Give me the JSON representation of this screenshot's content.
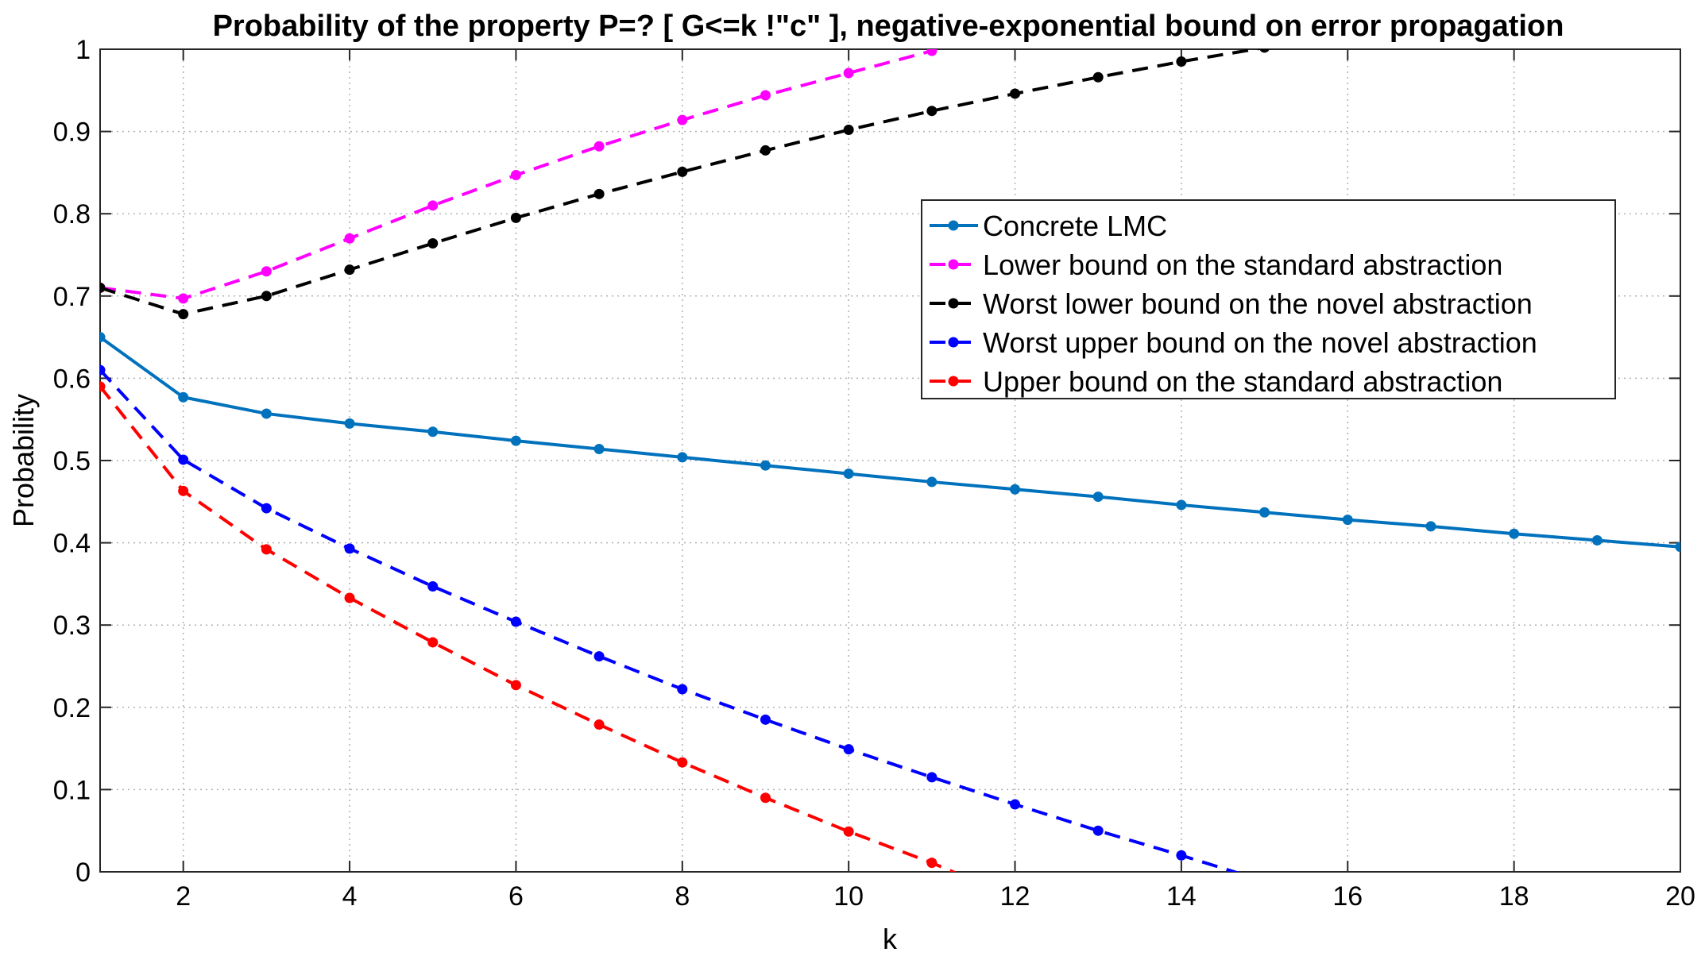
{
  "chart_data": {
    "type": "line",
    "title": "Probability of the property P=? [ G<=k !\"c\" ], negative-exponential bound on error propagation",
    "xlabel": "k",
    "ylabel": "Probability",
    "xlim": [
      1,
      20
    ],
    "ylim": [
      0,
      1
    ],
    "x_ticks": [
      2,
      4,
      6,
      8,
      10,
      12,
      14,
      16,
      18,
      20
    ],
    "y_ticks": [
      0,
      0.1,
      0.2,
      0.3,
      0.4,
      0.5,
      0.6,
      0.7,
      0.8,
      0.9,
      1
    ],
    "grid": true,
    "legend_position": "top-right",
    "series": [
      {
        "name": "Concrete LMC",
        "color": "#0072BD",
        "style": "solid",
        "x": [
          1,
          2,
          3,
          4,
          5,
          6,
          7,
          8,
          9,
          10,
          11,
          12,
          13,
          14,
          15,
          16,
          17,
          18,
          19,
          20
        ],
        "values": [
          0.65,
          0.577,
          0.557,
          0.545,
          0.535,
          0.524,
          0.514,
          0.504,
          0.494,
          0.484,
          0.474,
          0.465,
          0.456,
          0.446,
          0.437,
          0.428,
          0.42,
          0.411,
          0.403,
          0.395
        ]
      },
      {
        "name": "Lower bound on the standard abstraction",
        "color": "#FF00FF",
        "style": "dashed",
        "x": [
          1,
          2,
          3,
          4,
          5,
          6,
          7,
          8,
          9,
          10,
          11
        ],
        "values": [
          0.71,
          0.697,
          0.73,
          0.77,
          0.81,
          0.847,
          0.882,
          0.914,
          0.944,
          0.971,
          0.998
        ]
      },
      {
        "name": "Worst lower bound on the novel abstraction",
        "color": "#000000",
        "style": "dashed",
        "x": [
          1,
          2,
          3,
          4,
          5,
          6,
          7,
          8,
          9,
          10,
          11,
          12,
          13,
          14,
          15
        ],
        "values": [
          0.71,
          0.678,
          0.7,
          0.732,
          0.764,
          0.795,
          0.824,
          0.851,
          0.877,
          0.902,
          0.925,
          0.946,
          0.966,
          0.985,
          1.002
        ]
      },
      {
        "name": "Worst upper bound on the novel abstraction",
        "color": "#0000FF",
        "style": "dashed",
        "x": [
          1,
          2,
          3,
          4,
          5,
          6,
          7,
          8,
          9,
          10,
          11,
          12,
          13,
          14,
          14.7
        ],
        "values": [
          0.61,
          0.501,
          0.442,
          0.393,
          0.347,
          0.304,
          0.262,
          0.222,
          0.185,
          0.149,
          0.115,
          0.082,
          0.05,
          0.02,
          -0.002
        ],
        "markers_upto": 14
      },
      {
        "name": "Upper bound on the standard abstraction",
        "color": "#FF0000",
        "style": "dashed",
        "x": [
          1,
          2,
          3,
          4,
          5,
          6,
          7,
          8,
          9,
          10,
          11,
          11.3
        ],
        "values": [
          0.59,
          0.463,
          0.392,
          0.333,
          0.279,
          0.227,
          0.179,
          0.133,
          0.09,
          0.049,
          0.011,
          -0.002
        ],
        "markers_upto": 11
      }
    ]
  }
}
